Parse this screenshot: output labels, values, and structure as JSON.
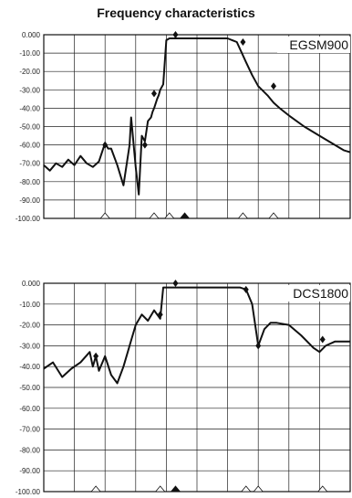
{
  "title": "Frequency characteristics",
  "chart_data": [
    {
      "type": "line",
      "label": "EGSM900",
      "ylim": [
        -100,
        0
      ],
      "yticks": [
        "0.000",
        "-10.00",
        "-20.00",
        "-30.00",
        "-40.00",
        "-50.00",
        "-60.00",
        "-70.00",
        "-80.00",
        "-90.00",
        "-100.00"
      ],
      "xlim": [
        0,
        10
      ],
      "grid": true,
      "x": [
        0,
        0.2,
        0.4,
        0.6,
        0.8,
        1.0,
        1.2,
        1.4,
        1.6,
        1.8,
        2.0,
        2.1,
        2.2,
        2.4,
        2.6,
        2.8,
        2.85,
        3.0,
        3.1,
        3.2,
        3.3,
        3.4,
        3.5,
        3.55,
        3.6,
        3.7,
        3.75,
        3.8,
        3.9,
        4.0,
        4.1,
        4.2,
        4.3,
        4.35,
        4.4,
        4.6,
        4.8,
        5.0,
        5.5,
        6.0,
        6.3,
        6.6,
        6.8,
        7.0,
        7.3,
        7.5,
        7.7,
        8.0,
        8.5,
        9.0,
        9.5,
        9.7,
        9.8,
        10.0
      ],
      "y": [
        -71,
        -74,
        -70,
        -72,
        -68,
        -71,
        -66,
        -70,
        -72,
        -69,
        -59,
        -62,
        -62,
        -71,
        -82,
        -60,
        -45,
        -72,
        -87,
        -55,
        -58,
        -47,
        -45,
        -42,
        -40,
        -35,
        -33,
        -30,
        -27,
        -3,
        -2,
        -2,
        -2,
        -2,
        -2,
        -2,
        -2,
        -2,
        -2,
        -2,
        -4,
        -15,
        -22,
        -28,
        -33,
        -37,
        -40,
        -44,
        -50,
        -55,
        -60,
        -62,
        -63,
        -64
      ],
      "markers_x": [
        4.3,
        6.5,
        7.5
      ],
      "markers_y": [
        0,
        -4,
        -28
      ],
      "markers_lower_x": [
        2.0,
        3.3,
        3.6
      ],
      "markers_lower_y": [
        -60,
        -60,
        -32
      ]
    },
    {
      "type": "line",
      "label": "DCS1800",
      "ylim": [
        -100,
        0
      ],
      "yticks": [
        "0.000",
        "-10.00",
        "-20.00",
        "-30.00",
        "-40.00",
        "-50.00",
        "-60.00",
        "-70.00",
        "-80.00",
        "-90.00",
        "-100.00"
      ],
      "xlim": [
        0,
        10
      ],
      "grid": true,
      "x": [
        0,
        0.3,
        0.6,
        0.9,
        1.2,
        1.5,
        1.6,
        1.7,
        1.8,
        2.0,
        2.2,
        2.4,
        2.6,
        2.8,
        3.0,
        3.2,
        3.4,
        3.6,
        3.8,
        3.9,
        4.0,
        4.1,
        4.2,
        4.5,
        5.0,
        5.5,
        6.0,
        6.4,
        6.6,
        6.8,
        7.0,
        7.2,
        7.4,
        7.6,
        8.0,
        8.4,
        8.8,
        9.0,
        9.2,
        9.5,
        9.8,
        10.0
      ],
      "y": [
        -41,
        -38,
        -45,
        -41,
        -38,
        -33,
        -40,
        -35,
        -42,
        -35,
        -44,
        -48,
        -40,
        -30,
        -20,
        -15,
        -18,
        -13,
        -17,
        -2,
        -2,
        -2,
        -2,
        -2,
        -2,
        -2,
        -2,
        -2,
        -3,
        -10,
        -30,
        -22,
        -19,
        -19,
        -20,
        -25,
        -31,
        -33,
        -30,
        -28,
        -28,
        -28
      ],
      "markers_x": [
        4.3,
        6.6,
        7.0,
        9.1
      ],
      "markers_y": [
        0,
        -3,
        -30,
        -27
      ],
      "markers_lower_x": [
        1.7,
        3.8
      ],
      "markers_lower_y": [
        -35,
        -15
      ]
    }
  ]
}
